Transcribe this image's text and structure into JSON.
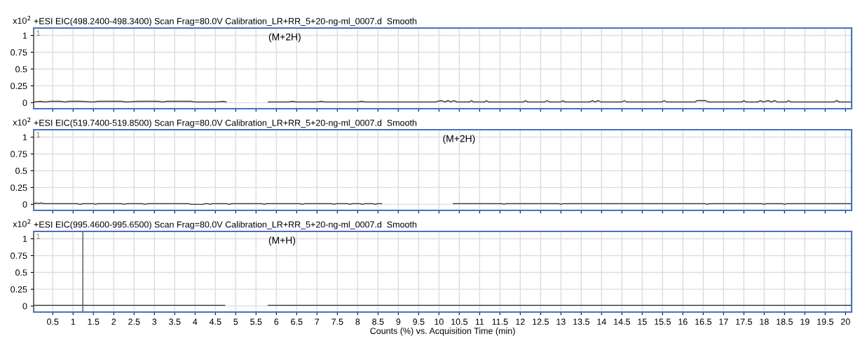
{
  "chart_data": [
    {
      "type": "line",
      "title": "+ESI EIC(498.2400-498.3400) Scan Frag=80.0V Calibration_LR+RR_5+20-ng-ml_0007.d  Smooth",
      "ylabel": "x10$^{2}$",
      "xlim": [
        0.03,
        20.15
      ],
      "ylim": [
        -0.09,
        1.11
      ],
      "xticks": [
        0.5,
        1,
        1.5,
        2,
        2.5,
        3,
        3.5,
        4,
        4.5,
        5,
        5.5,
        6,
        6.5,
        7,
        7.5,
        8,
        8.5,
        9,
        9.5,
        10,
        10.5,
        11,
        11.5,
        12,
        12.5,
        13,
        13.5,
        14,
        14.5,
        15,
        15.5,
        16,
        16.5,
        17,
        17.5,
        18,
        18.5,
        19,
        19.5,
        20
      ],
      "yticks": [
        0,
        0.25,
        0.5,
        0.75,
        1
      ],
      "grid": true,
      "tick_labels": "y",
      "marker": "none",
      "line_style": "solid",
      "annotations": [
        "1",
        "(M+2H)"
      ],
      "series": [
        {
          "color": "#333333",
          "x": [
            0.03,
            0.2,
            0.3,
            0.45,
            0.7,
            0.8,
            0.9,
            1.2,
            1.5,
            1.6,
            2.2,
            2.3,
            2.6,
            3.1,
            3.2,
            3.3,
            3.9,
            4.0,
            4.5,
            4.7,
            4.77,
            5.3,
            5.8,
            6.3,
            6.4,
            6.5,
            7.0,
            7.1,
            7.2,
            8.0,
            8.1,
            8.2,
            9.9,
            10.05,
            10.15,
            10.22,
            10.3,
            10.36,
            10.45,
            10.75,
            10.8,
            10.85,
            11.12,
            11.17,
            11.22,
            12.08,
            12.13,
            12.18,
            12.6,
            12.66,
            12.72,
            13.0,
            13.05,
            13.1,
            13.72,
            13.77,
            13.84,
            13.92,
            13.98,
            14.5,
            14.56,
            14.62,
            15.48,
            15.54,
            15.6,
            16.3,
            16.35,
            16.45,
            16.56,
            16.62,
            17.45,
            17.5,
            17.55,
            17.85,
            17.9,
            17.98,
            18.1,
            18.18,
            18.26,
            18.32,
            18.55,
            18.6,
            18.65,
            19.72,
            19.78,
            19.85,
            20.15
          ],
          "values": [
            0.01,
            0.02,
            0.01,
            0.02,
            0.02,
            0.01,
            0.02,
            0.02,
            0.01,
            0.02,
            0.02,
            0.01,
            0.02,
            0.02,
            0.01,
            0.02,
            0.02,
            0.01,
            0.01,
            0.02,
            0.01,
            null,
            0.01,
            0.01,
            0.02,
            0.01,
            0.01,
            0.02,
            0.01,
            0.01,
            0.02,
            0.01,
            0.01,
            0.03,
            0.01,
            0.03,
            0.01,
            0.03,
            0.01,
            0.01,
            0.03,
            0.01,
            0.01,
            0.03,
            0.01,
            0.01,
            0.03,
            0.01,
            0.01,
            0.03,
            0.01,
            0.01,
            0.03,
            0.01,
            0.01,
            0.03,
            0.01,
            0.03,
            0.01,
            0.01,
            0.03,
            0.01,
            0.01,
            0.03,
            0.01,
            0.01,
            0.03,
            0.03,
            0.03,
            0.01,
            0.01,
            0.03,
            0.01,
            0.01,
            0.03,
            0.01,
            0.03,
            0.01,
            0.03,
            0.01,
            0.01,
            0.03,
            0.01,
            0.01,
            0.03,
            0.01,
            0.01
          ]
        }
      ]
    },
    {
      "type": "line",
      "title": "+ESI EIC(519.7400-519.8500) Scan Frag=80.0V Calibration_LR+RR_5+20-ng-ml_0007.d  Smooth",
      "ylabel": "x10$^{2}$",
      "xlim": [
        0.03,
        20.15
      ],
      "ylim": [
        -0.09,
        1.11
      ],
      "xticks": [
        0.5,
        1,
        1.5,
        2,
        2.5,
        3,
        3.5,
        4,
        4.5,
        5,
        5.5,
        6,
        6.5,
        7,
        7.5,
        8,
        8.5,
        9,
        9.5,
        10,
        10.5,
        11,
        11.5,
        12,
        12.5,
        13,
        13.5,
        14,
        14.5,
        15,
        15.5,
        16,
        16.5,
        17,
        17.5,
        18,
        18.5,
        19,
        19.5,
        20
      ],
      "yticks": [
        0,
        0.25,
        0.5,
        0.75,
        1
      ],
      "grid": true,
      "tick_labels": "y",
      "marker": "none",
      "line_style": "solid",
      "annotations": [
        "1",
        "(M+2H)"
      ],
      "series": [
        {
          "color": "#333333",
          "x": [
            0.03,
            0.1,
            0.15,
            0.2,
            0.3,
            1.1,
            1.17,
            1.24,
            1.5,
            1.55,
            1.6,
            2.2,
            2.26,
            2.32,
            2.7,
            2.77,
            2.84,
            3.85,
            3.9,
            4.2,
            4.25,
            4.32,
            4.37,
            4.42,
            4.78,
            4.84,
            4.9,
            5.65,
            5.7,
            5.75,
            6.58,
            6.64,
            6.7,
            7.36,
            7.42,
            7.48,
            7.75,
            7.81,
            7.87,
            8.06,
            8.12,
            8.18,
            8.37,
            8.43,
            8.49,
            8.59,
            9.5,
            10.35,
            11.55,
            11.6,
            11.65,
            12.95,
            13.0,
            13.05,
            16.55,
            16.6,
            16.65,
            17.95,
            18.0,
            18.05,
            18.45,
            18.5,
            18.55,
            20.15
          ],
          "values": [
            0.01,
            0.02,
            0.01,
            0.02,
            0.01,
            0.01,
            0.0,
            0.01,
            0.01,
            0.0,
            0.01,
            0.01,
            0.0,
            0.01,
            0.01,
            0.0,
            0.01,
            0.01,
            0.0,
            0.0,
            0.01,
            0.01,
            0.0,
            0.01,
            0.01,
            0.0,
            0.01,
            0.01,
            0.0,
            0.01,
            0.01,
            0.0,
            0.01,
            0.01,
            0.0,
            0.01,
            0.01,
            0.0,
            0.01,
            0.01,
            0.0,
            0.01,
            0.01,
            0.0,
            0.01,
            0.01,
            null,
            0.01,
            0.01,
            0.0,
            0.01,
            0.01,
            0.0,
            0.01,
            0.01,
            0.0,
            0.01,
            0.01,
            0.0,
            0.01,
            0.01,
            0.0,
            0.01,
            0.01
          ]
        }
      ]
    },
    {
      "type": "line",
      "title": "+ESI EIC(995.4600-995.6500) Scan Frag=80.0V Calibration_LR+RR_5+20-ng-ml_0007.d  Smooth",
      "ylabel": "x10$^{2}$",
      "xlabel": "Counts (%) vs. Acquisition Time (min)",
      "xlim": [
        0.03,
        20.15
      ],
      "ylim": [
        -0.09,
        1.11
      ],
      "xticks": [
        0.5,
        1,
        1.5,
        2,
        2.5,
        3,
        3.5,
        4,
        4.5,
        5,
        5.5,
        6,
        6.5,
        7,
        7.5,
        8,
        8.5,
        9,
        9.5,
        10,
        10.5,
        11,
        11.5,
        12,
        12.5,
        13,
        13.5,
        14,
        14.5,
        15,
        15.5,
        16,
        16.5,
        17,
        17.5,
        18,
        18.5,
        19,
        19.5,
        20
      ],
      "yticks": [
        0,
        0.25,
        0.5,
        0.75,
        1
      ],
      "grid": true,
      "marker": "none",
      "line_style": "solid",
      "ref_lines": [
        {
          "axis": "x",
          "value": 1.24,
          "color": "#555555"
        }
      ],
      "annotations": [
        "1",
        "(M+H)"
      ],
      "series": [
        {
          "color": "#333333",
          "x": [
            0.03,
            4.73,
            5.3,
            5.8,
            20.15
          ],
          "values": [
            0.01,
            0.01,
            null,
            0.01,
            0.01
          ]
        }
      ]
    }
  ]
}
